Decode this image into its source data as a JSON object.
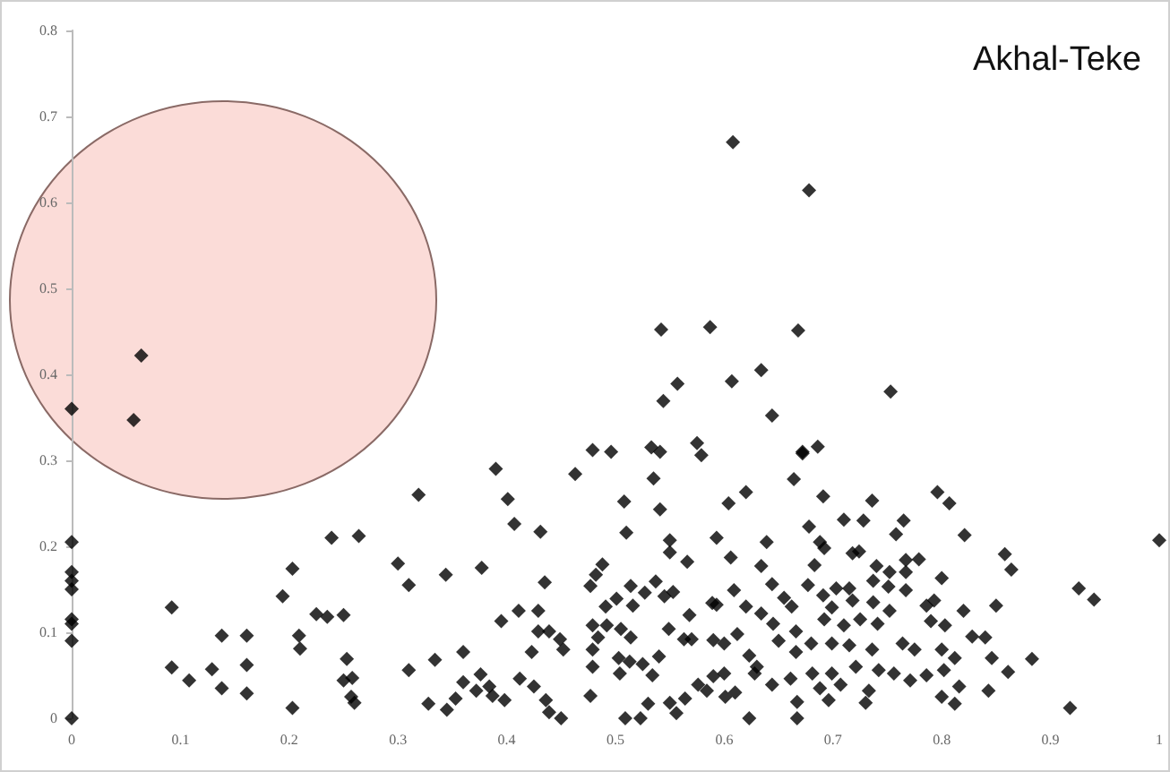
{
  "chart_data": {
    "type": "scatter",
    "title": "Akhal-Teke",
    "x": [
      0,
      0,
      0,
      0,
      0,
      0,
      0,
      0,
      0.057,
      0.064,
      0.092,
      0.092,
      0.108,
      0.129,
      0.138,
      0.138,
      0.161,
      0.161,
      0.161,
      0.194,
      0.203,
      0.209,
      0.21,
      0.203,
      0.225,
      0.235,
      0.239,
      0.264,
      0.25,
      0.253,
      0.25,
      0.258,
      0.257,
      0.26,
      0.608,
      0.678,
      0.542,
      0.587,
      0.668,
      0.557,
      0.607,
      0.634,
      0.544,
      0.644,
      0.753,
      0.479,
      0.496,
      0.533,
      0.541,
      0.575,
      0.579,
      0.672,
      0.686,
      0.319,
      0.3,
      0.31,
      0.39,
      0.401,
      0.407,
      0.431,
      0.463,
      0.344,
      0.377,
      0.435,
      0.411,
      0.429,
      0.395,
      0.429,
      0.439,
      0.449,
      0.452,
      0.423,
      0.31,
      0.334,
      0.36,
      0.36,
      0.376,
      0.372,
      0.384,
      0.387,
      0.398,
      0.412,
      0.425,
      0.353,
      0.328,
      0.345,
      0.436,
      0.439,
      0.45,
      0.508,
      0.541,
      0.535,
      0.51,
      0.488,
      0.482,
      0.477,
      0.514,
      0.537,
      0.55,
      0.55,
      0.566,
      0.593,
      0.604,
      0.62,
      0.491,
      0.501,
      0.516,
      0.527,
      0.545,
      0.553,
      0.568,
      0.589,
      0.479,
      0.484,
      0.492,
      0.505,
      0.514,
      0.549,
      0.563,
      0.57,
      0.59,
      0.6,
      0.612,
      0.479,
      0.479,
      0.503,
      0.513,
      0.504,
      0.525,
      0.534,
      0.54,
      0.477,
      0.509,
      0.523,
      0.53,
      0.55,
      0.556,
      0.564,
      0.576,
      0.584,
      0.59,
      0.6,
      0.601,
      0.623,
      0.623,
      0.628,
      0.634,
      0.639,
      0.634,
      0.644,
      0.644,
      0.606,
      0.609,
      0.593,
      0.664,
      0.672,
      0.691,
      0.71,
      0.728,
      0.736,
      0.765,
      0.758,
      0.796,
      0.807,
      0.821,
      0.858,
      0.864,
      1,
      0.926,
      0.94,
      0.678,
      0.688,
      0.692,
      0.718,
      0.724,
      0.74,
      0.752,
      0.767,
      0.779,
      0.767,
      0.683,
      0.677,
      0.703,
      0.715,
      0.737,
      0.751,
      0.767,
      0.8,
      0.793,
      0.786,
      0.752,
      0.737,
      0.718,
      0.691,
      0.662,
      0.699,
      0.82,
      0.85,
      0.666,
      0.692,
      0.71,
      0.725,
      0.741,
      0.79,
      0.803,
      0.828,
      0.84,
      0.68,
      0.699,
      0.715,
      0.736,
      0.764,
      0.775,
      0.8,
      0.812,
      0.666,
      0.846,
      0.883,
      0.661,
      0.681,
      0.699,
      0.721,
      0.742,
      0.756,
      0.771,
      0.786,
      0.802,
      0.861,
      0.688,
      0.707,
      0.733,
      0.816,
      0.843,
      0.667,
      0.696,
      0.73,
      0.8,
      0.812,
      0.667,
      0.918,
      0.645,
      0.65,
      0.655,
      0.62,
      0.63,
      0.61,
      0
    ],
    "series": [
      {
        "color": "#000000",
        "values": [
          0,
          0.205,
          0.17,
          0.16,
          0.15,
          0.115,
          0.11,
          0.09,
          0.347,
          0.422,
          0.129,
          0.059,
          0.044,
          0.057,
          0.096,
          0.035,
          0.096,
          0.062,
          0.029,
          0.142,
          0.174,
          0.096,
          0.081,
          0.012,
          0.121,
          0.118,
          0.21,
          0.212,
          0.12,
          0.069,
          0.044,
          0.047,
          0.025,
          0.018,
          0.67,
          0.614,
          0.452,
          0.455,
          0.451,
          0.389,
          0.392,
          0.405,
          0.369,
          0.352,
          0.38,
          0.312,
          0.31,
          0.315,
          0.31,
          0.32,
          0.306,
          0.31,
          0.316,
          0.26,
          0.18,
          0.155,
          0.29,
          0.255,
          0.226,
          0.217,
          0.284,
          0.167,
          0.175,
          0.158,
          0.125,
          0.125,
          0.113,
          0.101,
          0.101,
          0.092,
          0.08,
          0.077,
          0.056,
          0.068,
          0.077,
          0.042,
          0.051,
          0.032,
          0.037,
          0.026,
          0.021,
          0.046,
          0.037,
          0.023,
          0.017,
          0.01,
          0.021,
          0.007,
          0,
          0.252,
          0.243,
          0.279,
          0.216,
          0.179,
          0.167,
          0.154,
          0.154,
          0.159,
          0.207,
          0.193,
          0.182,
          0.21,
          0.25,
          0.263,
          0.13,
          0.139,
          0.131,
          0.146,
          0.142,
          0.147,
          0.12,
          0.134,
          0.108,
          0.094,
          0.108,
          0.104,
          0.094,
          0.104,
          0.092,
          0.092,
          0.091,
          0.087,
          0.098,
          0.08,
          0.06,
          0.07,
          0.066,
          0.052,
          0.063,
          0.05,
          0.072,
          0.026,
          0,
          0,
          0.017,
          0.018,
          0.006,
          0.023,
          0.039,
          0.032,
          0.049,
          0.052,
          0.025,
          0,
          0.073,
          0.052,
          0.122,
          0.205,
          0.177,
          0.156,
          0.039,
          0.187,
          0.149,
          0.132,
          0.278,
          0.308,
          0.258,
          0.231,
          0.23,
          0.253,
          0.23,
          0.214,
          0.263,
          0.25,
          0.213,
          0.191,
          0.173,
          0.207,
          0.151,
          0.138,
          0.223,
          0.205,
          0.198,
          0.192,
          0.194,
          0.177,
          0.17,
          0.184,
          0.185,
          0.17,
          0.178,
          0.155,
          0.151,
          0.151,
          0.16,
          0.153,
          0.149,
          0.163,
          0.137,
          0.131,
          0.125,
          0.135,
          0.137,
          0.143,
          0.13,
          0.129,
          0.125,
          0.131,
          0.101,
          0.115,
          0.108,
          0.115,
          0.11,
          0.113,
          0.108,
          0.095,
          0.094,
          0.087,
          0.087,
          0.085,
          0.08,
          0.087,
          0.08,
          0.08,
          0.07,
          0.077,
          0.07,
          0.069,
          0.046,
          0.052,
          0.052,
          0.06,
          0.056,
          0.052,
          0.044,
          0.05,
          0.056,
          0.054,
          0.035,
          0.039,
          0.032,
          0.037,
          0.032,
          0.019,
          0.021,
          0.018,
          0.025,
          0.017,
          0,
          0.012,
          0.11,
          0.09,
          0.14,
          0.13,
          0.06,
          0.03,
          0.36
        ]
      }
    ],
    "marker": "diamond",
    "xlim": [
      0,
      1
    ],
    "xticks": [
      0,
      0.1,
      0.2,
      0.3,
      0.4,
      0.5,
      0.6,
      0.7,
      0.8,
      0.9,
      1
    ],
    "ylim": [
      0,
      0.8
    ],
    "yticks": [
      0,
      0.1,
      0.2,
      0.3,
      0.4,
      0.5,
      0.6,
      0.7,
      0.8
    ]
  }
}
